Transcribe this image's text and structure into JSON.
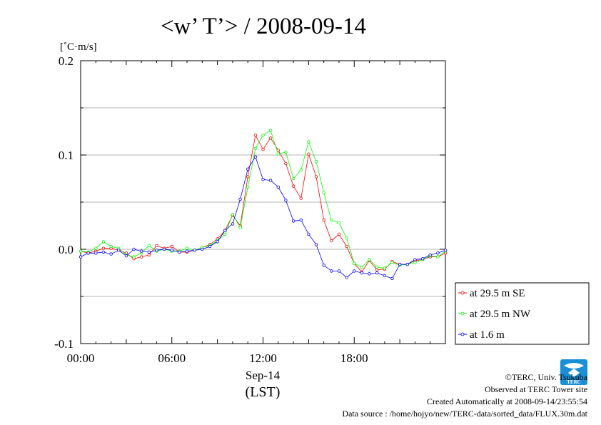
{
  "chart_data": {
    "type": "line",
    "title": "<w’ T’> / 2008-09-14",
    "ylabel": "[˚C·m/s]",
    "xlabel_date": "Sep-14",
    "xlabel_tz": "(LST)",
    "ylim": [
      -0.1,
      0.2
    ],
    "xlim_hours": [
      0,
      24
    ],
    "y_ticks": [
      {
        "value": 0.2,
        "label": "0.2"
      },
      {
        "value": 0.1,
        "label": "0.1"
      },
      {
        "value": 0.0,
        "label": "0.0"
      },
      {
        "value": -0.1,
        "label": "-0.1"
      }
    ],
    "x_ticks": [
      {
        "value": 0,
        "label": "00:00"
      },
      {
        "value": 6,
        "label": "06:00"
      },
      {
        "value": 12,
        "label": "12:00"
      },
      {
        "value": 18,
        "label": "18:00"
      }
    ],
    "grid": "horizontal",
    "legend_position": "bottom-right",
    "series": [
      {
        "name": "at 29.5 m SE",
        "color": "#ff0000",
        "values": [
          -0.002,
          -0.004,
          -0.002,
          0.001,
          0.001,
          -0.001,
          -0.004,
          -0.01,
          -0.008,
          -0.006,
          0.004,
          0.001,
          0.003,
          -0.003,
          -0.003,
          -0.001,
          0.002,
          0.005,
          0.011,
          0.02,
          0.036,
          0.025,
          0.077,
          0.121,
          0.106,
          0.118,
          0.105,
          0.091,
          0.067,
          0.054,
          0.101,
          0.077,
          0.031,
          0.009,
          0.016,
          0.003,
          -0.015,
          -0.024,
          -0.012,
          -0.022,
          -0.021,
          -0.013,
          -0.016,
          -0.016,
          -0.012,
          -0.011,
          -0.008,
          -0.008,
          -0.004
        ]
      },
      {
        "name": "at 29.5 m NW",
        "color": "#00ff00",
        "values": [
          -0.002,
          -0.003,
          0.001,
          0.008,
          0.003,
          0.001,
          -0.006,
          -0.008,
          -0.004,
          0.004,
          -0.002,
          0.0,
          -0.002,
          -0.002,
          0.001,
          -0.001,
          0.002,
          0.004,
          0.009,
          0.016,
          0.037,
          0.023,
          0.066,
          0.107,
          0.121,
          0.126,
          0.101,
          0.103,
          0.075,
          0.084,
          0.114,
          0.093,
          0.06,
          0.031,
          0.028,
          0.012,
          -0.015,
          -0.019,
          -0.011,
          -0.019,
          -0.02,
          -0.014,
          -0.017,
          -0.016,
          -0.014,
          -0.011,
          -0.007,
          -0.008,
          -0.002
        ]
      },
      {
        "name": "at 1.6 m",
        "color": "#0000ff",
        "values": [
          -0.008,
          -0.004,
          -0.004,
          -0.003,
          -0.005,
          -0.001,
          -0.007,
          0.0,
          -0.002,
          -0.003,
          -0.001,
          0.0,
          -0.001,
          -0.003,
          -0.002,
          -0.001,
          0.0,
          0.003,
          0.008,
          0.02,
          0.027,
          0.053,
          0.085,
          0.098,
          0.074,
          0.073,
          0.066,
          0.052,
          0.03,
          0.031,
          0.016,
          0.005,
          -0.017,
          -0.023,
          -0.023,
          -0.03,
          -0.023,
          -0.025,
          -0.026,
          -0.025,
          -0.028,
          -0.031,
          -0.016,
          -0.016,
          -0.011,
          -0.01,
          -0.006,
          -0.004,
          -0.001
        ]
      }
    ]
  },
  "footer": {
    "credit": "©TERC, Univ. Tsukuba",
    "observed": "Observed at TERC Tower site",
    "created": "Created Automatically at 2008-09-14/23:55:54",
    "source": "Data source : /home/hojyo/new/TERC-data/sorted_data/FLUX.30m.dat",
    "logo_text": "TERC"
  }
}
